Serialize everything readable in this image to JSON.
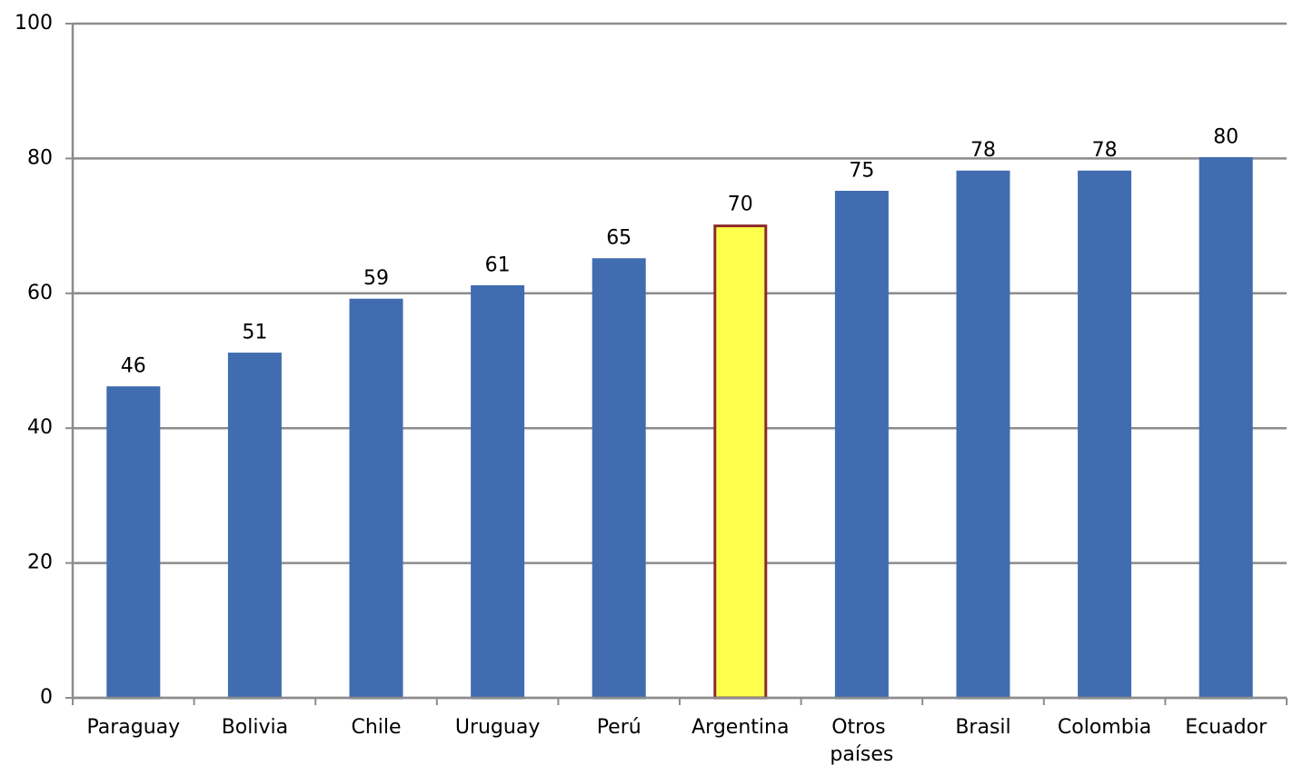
{
  "chart_data": {
    "type": "bar",
    "categories": [
      "Paraguay",
      "Bolivia",
      "Chile",
      "Uruguay",
      "Perú",
      "Argentina",
      "Otros países",
      "Brasil",
      "Colombia",
      "Ecuador"
    ],
    "values": [
      46,
      51,
      59,
      61,
      65,
      70,
      75,
      78,
      78,
      80
    ],
    "colors": [
      "#416cb0",
      "#416cb0",
      "#416cb0",
      "#416cb0",
      "#416cb0",
      "#ffff4d",
      "#416cb0",
      "#416cb0",
      "#416cb0",
      "#416cb0"
    ],
    "edgecolors": [
      "#416cb0",
      "#416cb0",
      "#416cb0",
      "#416cb0",
      "#416cb0",
      "#8b2a2a",
      "#416cb0",
      "#416cb0",
      "#416cb0",
      "#416cb0"
    ],
    "ylim": [
      0,
      100
    ],
    "yticks": [
      0,
      20,
      40,
      60,
      80,
      100
    ],
    "grid": true
  }
}
